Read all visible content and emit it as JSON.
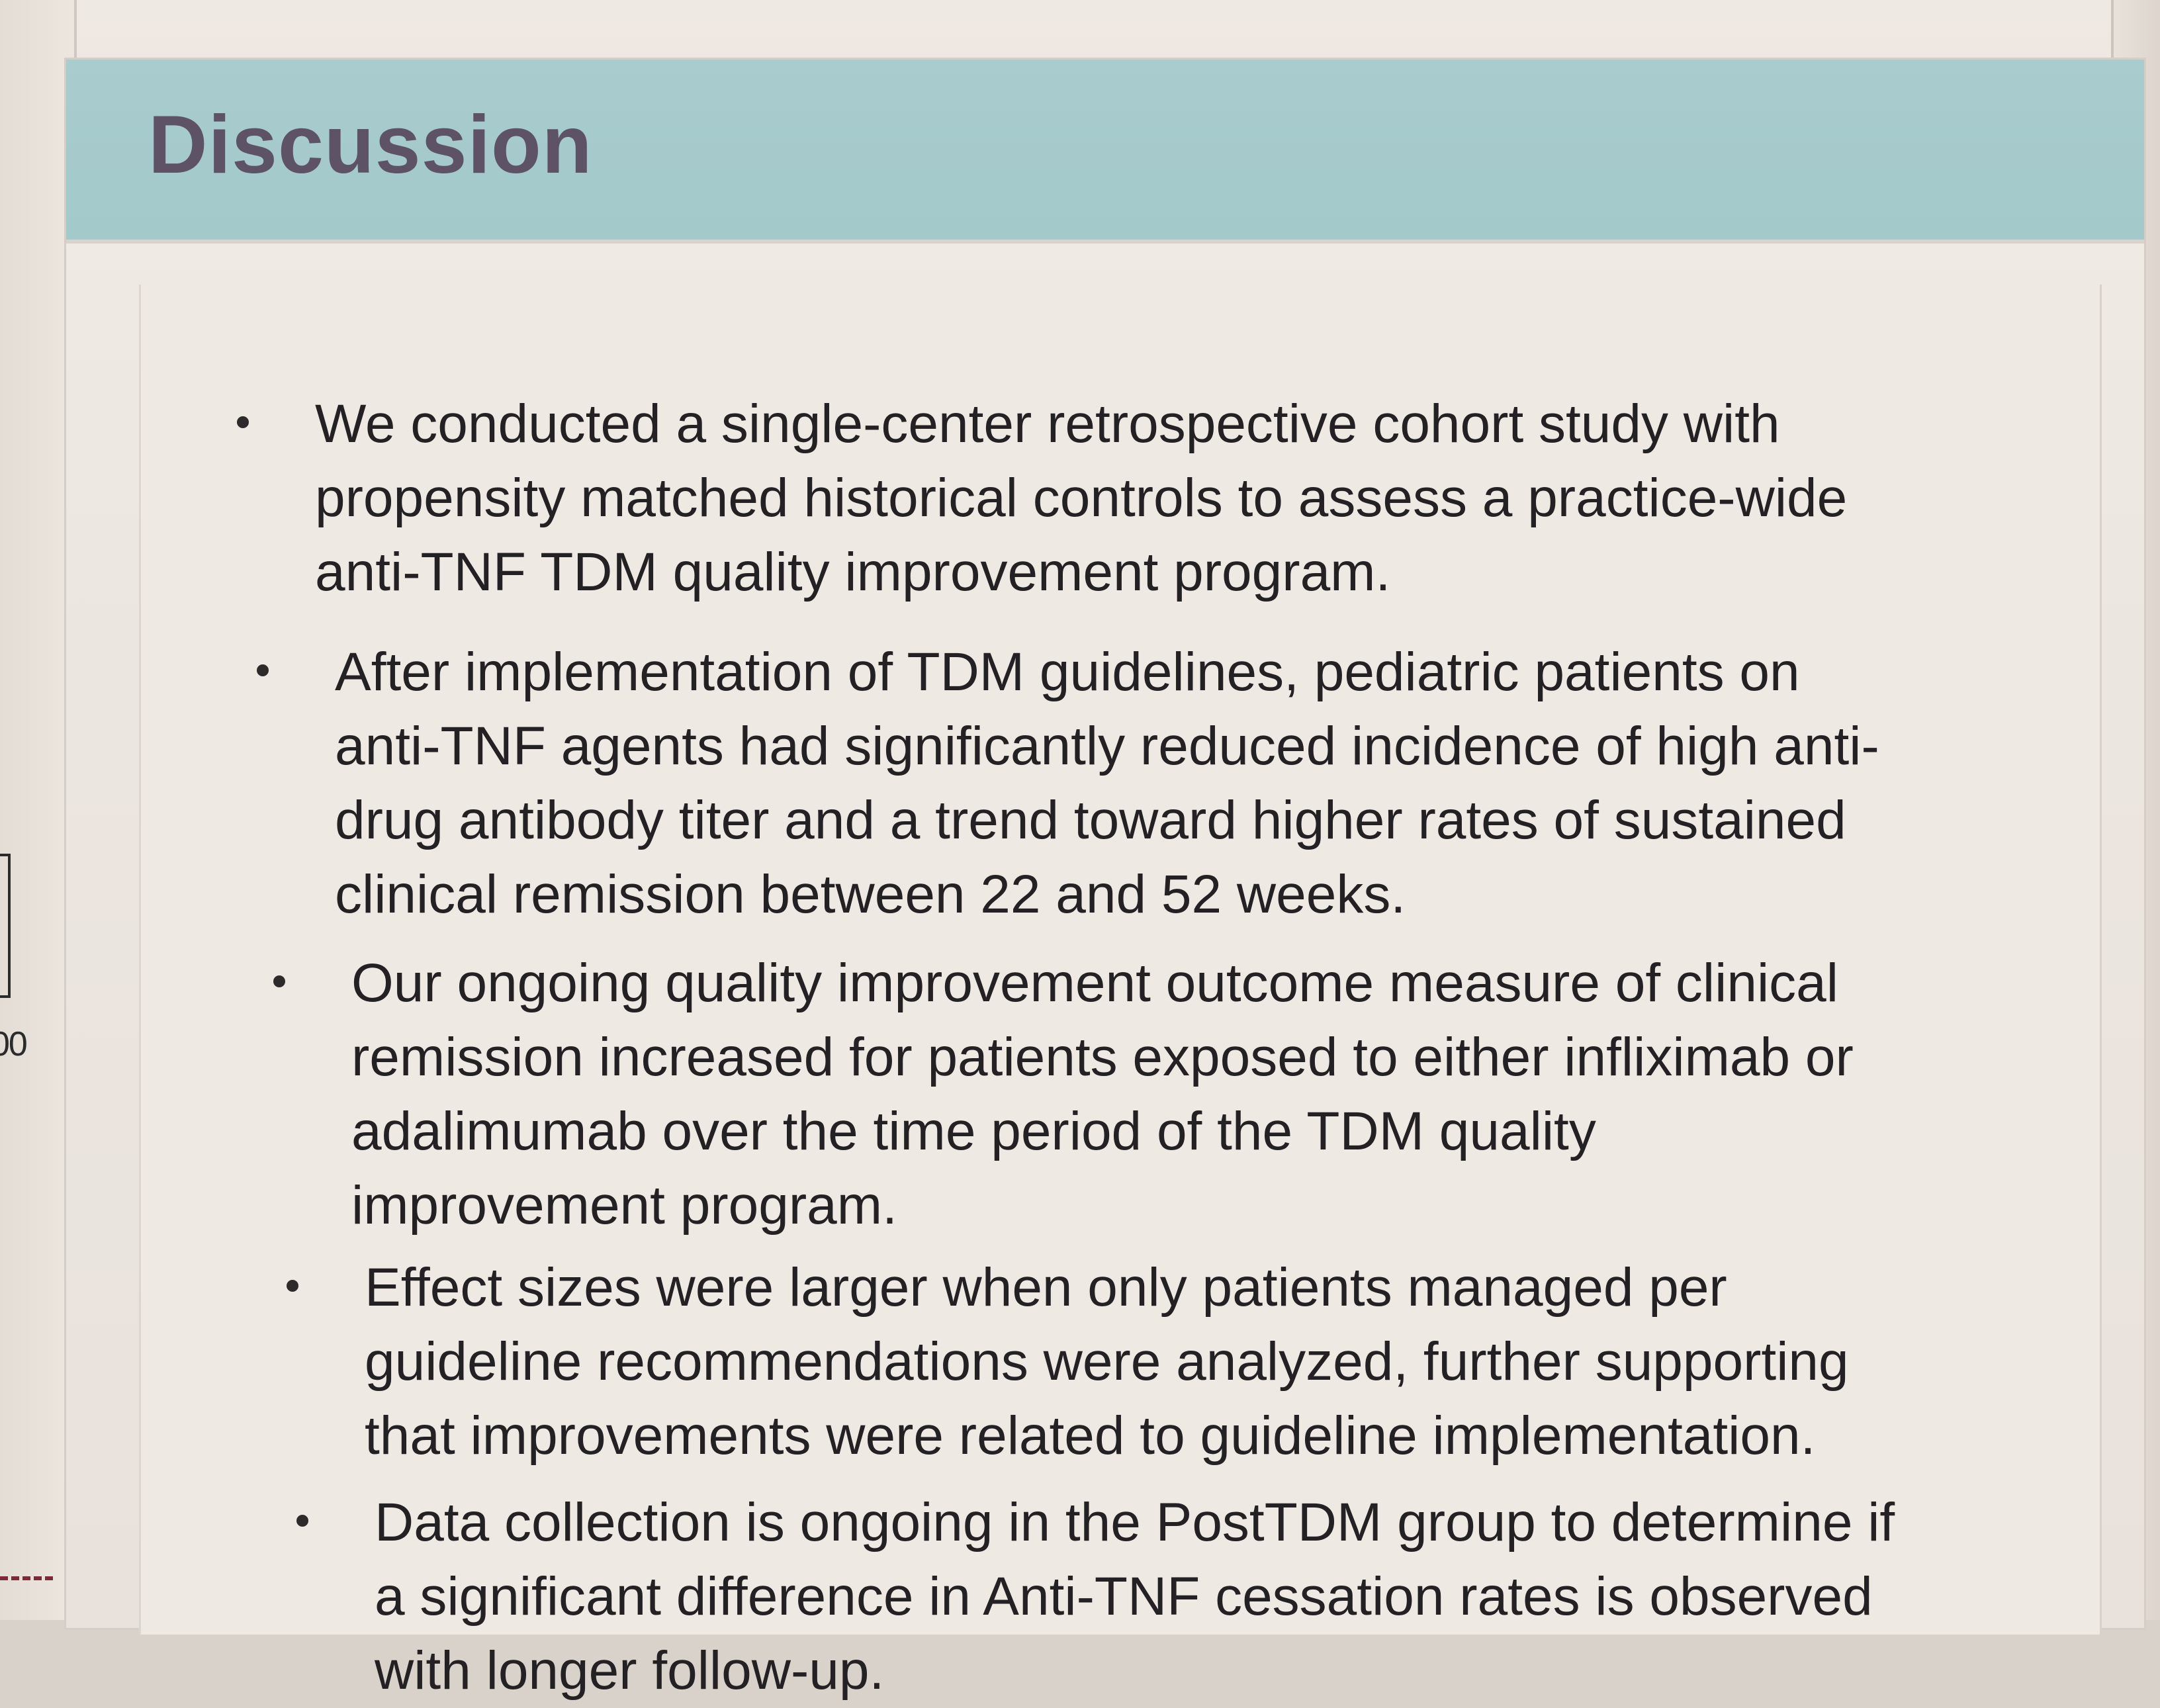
{
  "poster": {
    "heading": "Discussion",
    "side_fragment": "00",
    "bullets": [
      {
        "text": "We conducted a single-center retrospective cohort study with\npropensity matched historical controls to assess a practice-wide\nanti-TNF TDM quality improvement program."
      },
      {
        "text": "After implementation of TDM guidelines, pediatric patients on\nanti-TNF agents had significantly reduced incidence of high anti-\ndrug antibody titer and a trend toward higher rates of sustained\nclinical remission between 22 and 52 weeks."
      },
      {
        "text": "Our ongoing quality improvement outcome measure of clinical\nremission increased for patients exposed to either infliximab or\nadalimumab over the time period of the TDM quality\nimprovement program."
      },
      {
        "text": "Effect sizes were larger when only patients managed per\nguideline recommendations were analyzed, further supporting\nthat improvements were related to guideline implementation."
      },
      {
        "text": "Data collection is ongoing in the PostTDM group to determine if\na significant difference in Anti-TNF cessation rates is observed\nwith longer follow-up."
      }
    ]
  },
  "colors": {
    "header_band": "#a6cacc",
    "heading_text": "#5d5266",
    "body_text": "#242124",
    "paper": "#efe9e4"
  }
}
